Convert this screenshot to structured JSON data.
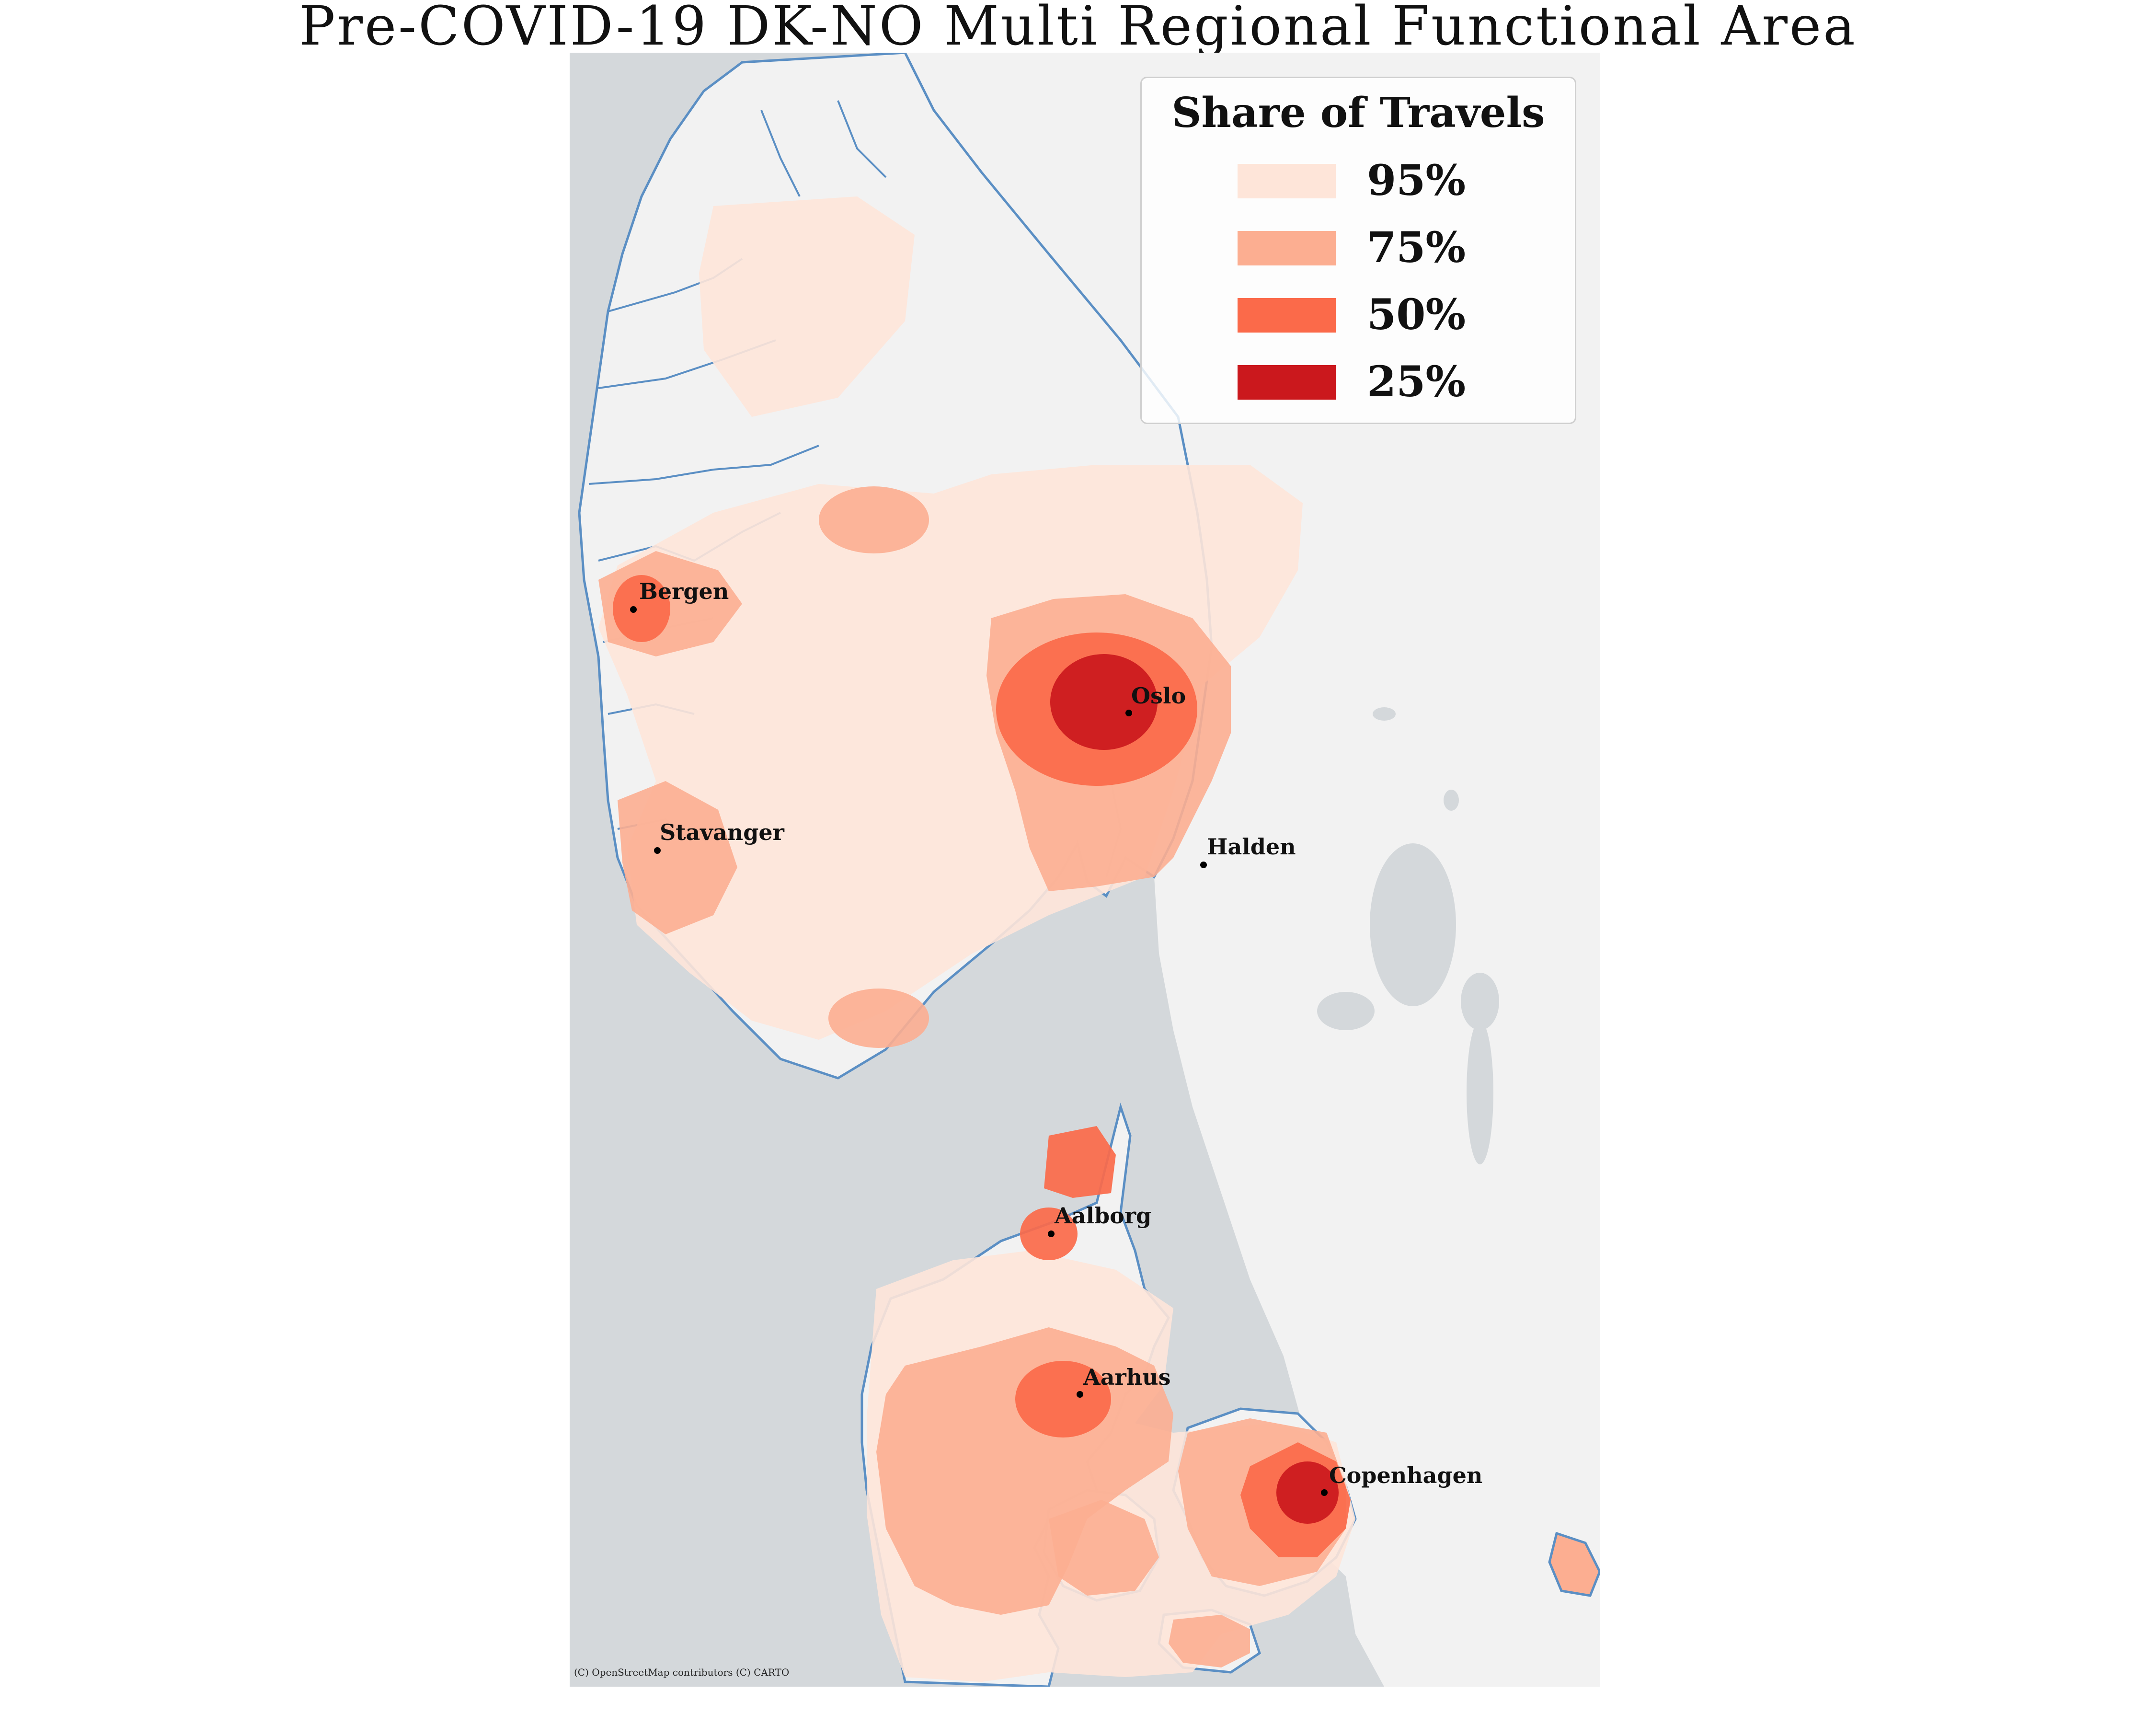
{
  "title": "Pre-COVID-19 DK-NO Multi Regional Functional Area",
  "colors": {
    "sea": "#d4d8db",
    "land": "#f2f2f2",
    "coastline": "#5b8fc4",
    "share_95": "#fee5d9",
    "share_75": "#fcae91",
    "share_50": "#fb6a4a",
    "share_25": "#cb181d"
  },
  "legend": {
    "title": "Share of Travels",
    "items": [
      {
        "label": "95%",
        "color": "#fee5d9"
      },
      {
        "label": "75%",
        "color": "#fcae91"
      },
      {
        "label": "50%",
        "color": "#fb6a4a"
      },
      {
        "label": "25%",
        "color": "#cb181d"
      }
    ]
  },
  "cities": {
    "bergen": "Bergen",
    "oslo": "Oslo",
    "stavanger": "Stavanger",
    "halden": "Halden",
    "aalborg": "Aalborg",
    "aarhus": "Aarhus",
    "copenhagen": "Copenhagen"
  },
  "attribution": "(C) OpenStreetMap contributors (C) CARTO"
}
